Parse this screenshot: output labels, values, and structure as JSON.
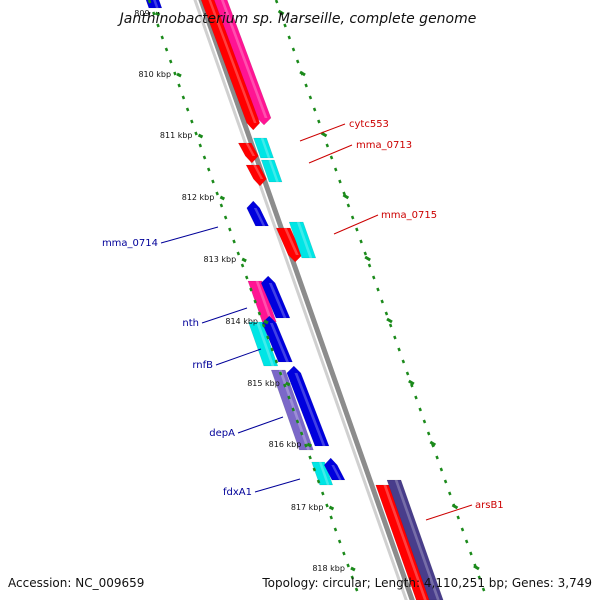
{
  "title": "Janthinobacterium sp. Marseille, complete genome",
  "footer": {
    "accession": "Accession: NC_009659",
    "topology": "Topology: circular; Length: 4,110,251 bp; Genes: 3,749"
  },
  "colors": {
    "red": "#ff0000",
    "pink": "#ff1493",
    "cyan": "#00e5e5",
    "blue": "#0000dd",
    "purple": "#7b68c8",
    "darkpurple": "#483d8b",
    "tick": "#1b8a1b",
    "backbone": "#8c8c8c",
    "label_red": "#cc0000",
    "label_blue": "#000099"
  },
  "ruler": {
    "unit": "kbp",
    "labels": [
      "809",
      "810 kbp",
      "811 kbp",
      "812 kbp",
      "813 kbp",
      "814 kbp",
      "815 kbp",
      "816 kbp",
      "817 kbp",
      "818 kbp"
    ]
  },
  "genes": [
    {
      "name": "cytc553",
      "strand": "forward",
      "color": "label_red"
    },
    {
      "name": "mma_0713",
      "strand": "forward",
      "color": "label_red"
    },
    {
      "name": "mma_0715",
      "strand": "forward",
      "color": "label_red"
    },
    {
      "name": "arsB1",
      "strand": "forward",
      "color": "label_red"
    },
    {
      "name": "mma_0714",
      "strand": "reverse",
      "color": "label_blue"
    },
    {
      "name": "nth",
      "strand": "reverse",
      "color": "label_blue"
    },
    {
      "name": "rnfB",
      "strand": "reverse",
      "color": "label_blue"
    },
    {
      "name": "depA",
      "strand": "reverse",
      "color": "label_blue"
    },
    {
      "name": "fdxA1",
      "strand": "reverse",
      "color": "label_blue"
    }
  ]
}
